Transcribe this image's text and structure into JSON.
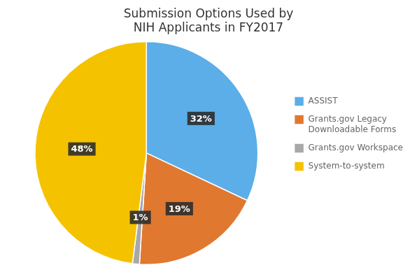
{
  "chart_data": {
    "type": "pie",
    "title": "Submission Options Used by\nNIH Applicants in FY2017",
    "categories": [
      "ASSIST",
      "Grants.gov Legacy\nDownloadable Forms",
      "Grants.gov Workspace",
      "System-to-system"
    ],
    "values": [
      32,
      19,
      1,
      48
    ],
    "value_labels": [
      "32%",
      "19%",
      "1%",
      "48%"
    ],
    "colors": [
      "#5BAEE8",
      "#E07830",
      "#A8A8A8",
      "#F5C200"
    ],
    "data_labels": true,
    "legend": "right"
  }
}
